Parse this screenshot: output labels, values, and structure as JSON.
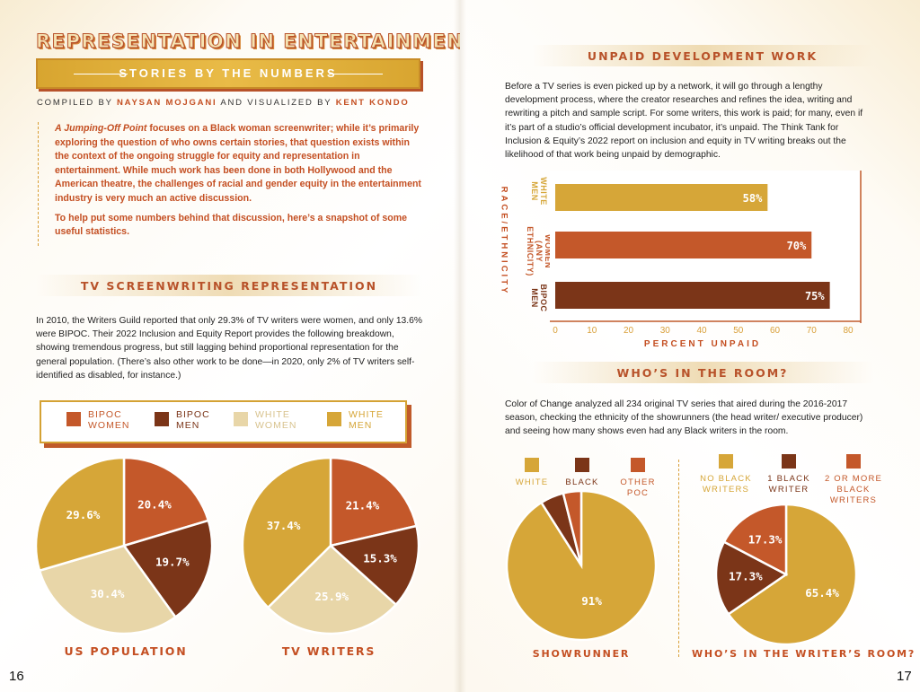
{
  "header": {
    "main_title": "REPRESENTATION IN ENTERTAINMENT:",
    "banner_subtitle": "STORIES BY THE NUMBERS",
    "compiled_by_prefix": "COMPILED BY",
    "compiler": "NAYSAN MOJGANI",
    "visualized_by_prefix": "AND VISUALIZED BY",
    "visualizer": "KENT KONDO"
  },
  "intro": {
    "p1_italic": "A Jumping-Off Point",
    "p1_rest": " focuses on a Black woman screenwriter; while it’s primarily exploring the question of who owns certain stories, that question exists within the context of the ongoing struggle for equity and representation in entertainment. While much work has been done in both Hollywood and the American theatre, the challenges of racial and gender equity in the entertainment industry is very much an active discussion.",
    "p2": "To help put some numbers behind that discussion, here’s a snapshot of some useful statistics."
  },
  "tv_section": {
    "title": "TV SCREENWRITING REPRESENTATION",
    "body": "In 2010, the Writers Guild reported that only 29.3% of TV writers were women, and only 13.6% were BIPOC. Their 2022 Inclusion and Equity Report provides the following breakdown, showing tremendous progress, but still lagging behind proportional representation for the general population. (There’s also other work to be done—in 2020, only 2% of TV writers self-identified as disabled, for instance.)",
    "legend": [
      {
        "label1": "BIPOC",
        "label2": "WOMEN",
        "color": "#c4582a",
        "text_color": "#c4582a"
      },
      {
        "label1": "BIPOC",
        "label2": "MEN",
        "color": "#7b3518",
        "text_color": "#7b3518"
      },
      {
        "label1": "WHITE",
        "label2": "WOMEN",
        "color": "#e8d6a8",
        "text_color": "#d8c38f"
      },
      {
        "label1": "WHITE",
        "label2": "MEN",
        "color": "#d6a638",
        "text_color": "#d6a638"
      }
    ],
    "pie1_caption": "US POPULATION",
    "pie2_caption": "TV WRITERS"
  },
  "unpaid_section": {
    "title": "UNPAID DEVELOPMENT WORK",
    "body": "Before a TV series is even picked up by a network, it will go through a lengthy development process, where the creator researches and refines the idea, writing and rewriting a pitch and sample script. For some writers, this work is paid; for many, even if it’s part of a studio’s official development incubator, it’s unpaid. The Think Tank for Inclusion & Equity’s 2022 report on inclusion and equity in TV writing breaks out the likelihood of that work being unpaid by demographic.",
    "y_axis_title": "RACE/ETHNICITY",
    "x_axis_title": "PERCENT UNPAID",
    "category_labels": [
      [
        "WHITE",
        "MEN"
      ],
      [
        "WOMEN",
        "(ANY",
        "ETHNICITY)"
      ],
      [
        "BIPOC",
        "MEN"
      ]
    ]
  },
  "room_section": {
    "title": "WHO’S IN THE ROOM?",
    "body": "Color of Change analyzed all 234 original TV series that aired during the 2016-2017 season, checking the ethnicity of the showrunners (the head writer/ executive producer) and seeing how many shows even had any Black writers in the room.",
    "legend1": [
      {
        "lines": [
          "WHITE"
        ],
        "color": "#d6a638",
        "text_color": "#d6a638"
      },
      {
        "lines": [
          "BLACK"
        ],
        "color": "#7b3518",
        "text_color": "#7b3518"
      },
      {
        "lines": [
          "OTHER",
          "POC"
        ],
        "color": "#c4582a",
        "text_color": "#c4582a"
      }
    ],
    "legend2": [
      {
        "lines": [
          "NO BLACK",
          "WRITERS"
        ],
        "color": "#d6a638",
        "text_color": "#d6a638"
      },
      {
        "lines": [
          "1 BLACK",
          "WRITER"
        ],
        "color": "#7b3518",
        "text_color": "#7b3518"
      },
      {
        "lines": [
          "2 OR MORE",
          "BLACK",
          "WRITERS"
        ],
        "color": "#c4582a",
        "text_color": "#c4582a"
      }
    ],
    "pie3_caption": "SHOWRUNNER",
    "pie4_caption": "WHO’S IN THE WRITER’S ROOM?"
  },
  "page_numbers": {
    "left": "16",
    "right": "17"
  },
  "colors": {
    "bipoc_women": "#c4582a",
    "bipoc_men": "#7b3518",
    "white_women": "#e8d6a8",
    "white_men": "#d6a638",
    "title_orange": "#b8522a"
  },
  "chart_data": [
    {
      "type": "pie",
      "title": "US POPULATION",
      "slices": [
        {
          "name": "BIPOC WOMEN",
          "value": 20.4,
          "label": "20.4%"
        },
        {
          "name": "BIPOC MEN",
          "value": 19.7,
          "label": "19.7%"
        },
        {
          "name": "WHITE WOMEN",
          "value": 30.4,
          "label": "30.4%"
        },
        {
          "name": "WHITE MEN",
          "value": 29.6,
          "label": "29.6%"
        }
      ]
    },
    {
      "type": "pie",
      "title": "TV WRITERS",
      "slices": [
        {
          "name": "BIPOC WOMEN",
          "value": 21.4,
          "label": "21.4%"
        },
        {
          "name": "BIPOC MEN",
          "value": 15.3,
          "label": "15.3%"
        },
        {
          "name": "WHITE WOMEN",
          "value": 25.9,
          "label": "25.9%"
        },
        {
          "name": "WHITE MEN",
          "value": 37.4,
          "label": "37.4%"
        }
      ]
    },
    {
      "type": "bar",
      "orientation": "horizontal",
      "title": "",
      "xlabel": "PERCENT UNPAID",
      "ylabel": "RACE/ETHNICITY",
      "categories": [
        "WHITE MEN",
        "WOMEN (ANY ETHNICITY)",
        "BIPOC MEN"
      ],
      "values": [
        58,
        70,
        75
      ],
      "value_labels": [
        "58%",
        "70%",
        "75%"
      ],
      "colors": [
        "#d6a638",
        "#c4582a",
        "#7b3518"
      ],
      "xlim": [
        0,
        80
      ],
      "xticks": [
        "0",
        "10",
        "20",
        "30",
        "40",
        "50",
        "60",
        "70",
        "80"
      ]
    },
    {
      "type": "pie",
      "title": "SHOWRUNNER",
      "slices": [
        {
          "name": "WHITE",
          "value": 91,
          "label": "91%"
        },
        {
          "name": "BLACK",
          "value": 5.1,
          "label": "5.1%"
        },
        {
          "name": "OTHER POC",
          "value": 3.9,
          "label": "3.9%"
        }
      ]
    },
    {
      "type": "pie",
      "title": "WHO’S IN THE WRITER’S ROOM?",
      "slices": [
        {
          "name": "NO BLACK WRITERS",
          "value": 65.4,
          "label": "65.4%"
        },
        {
          "name": "1 BLACK WRITER",
          "value": 17.3,
          "label": "17.3%"
        },
        {
          "name": "2 OR MORE BLACK WRITERS",
          "value": 17.3,
          "label": "17.3%"
        }
      ]
    }
  ]
}
